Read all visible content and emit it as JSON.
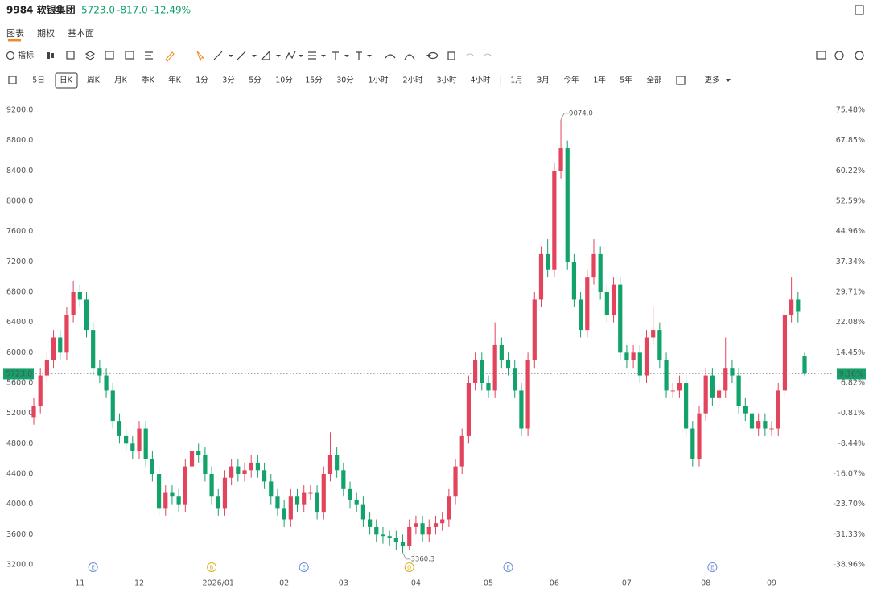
{
  "header": {
    "symbol": "9984 软银集团",
    "price": "5723.0",
    "change": "-817.0",
    "change_pct": "-12.49%"
  },
  "tabs": [
    "图表",
    "期权",
    "基本面"
  ],
  "toolbar": {
    "indicator": "指标"
  },
  "periods": [
    "5日",
    "日K",
    "周K",
    "月K",
    "季K",
    "年K",
    "1分",
    "3分",
    "5分",
    "10分",
    "15分",
    "30分",
    "1小时",
    "2小时",
    "3小时",
    "4小时",
    "1月",
    "3月",
    "今年",
    "1年",
    "5年",
    "全部",
    "更多"
  ],
  "chart_data": {
    "type": "candlestick",
    "up_color": "#e2445c",
    "down_color": "#12a26a",
    "grid": false,
    "categories": [
      null,
      null,
      null,
      null,
      null,
      null,
      null,
      "11",
      null,
      null,
      null,
      null,
      null,
      null,
      null,
      null,
      "12",
      null,
      null,
      null,
      null,
      null,
      null,
      null,
      null,
      null,
      null,
      null,
      "2026/01",
      null,
      null,
      null,
      null,
      null,
      null,
      null,
      null,
      null,
      "02",
      null,
      null,
      null,
      null,
      null,
      null,
      null,
      null,
      "03",
      null,
      null,
      null,
      null,
      null,
      null,
      null,
      null,
      null,
      null,
      "04",
      null,
      null,
      null,
      null,
      null,
      null,
      null,
      null,
      null,
      null,
      "05",
      null,
      null,
      null,
      null,
      null,
      null,
      null,
      null,
      null,
      "06",
      null,
      null,
      null,
      null,
      null,
      null,
      null,
      null,
      null,
      null,
      "07",
      null,
      null,
      null,
      null,
      null,
      null,
      null,
      null,
      null,
      null,
      null,
      "08",
      null,
      null,
      null,
      null,
      null,
      null,
      null,
      null,
      null,
      "09",
      null,
      null,
      null,
      null,
      null
    ],
    "open": [
      5150,
      5300,
      5700,
      5900,
      6200,
      6000,
      6500,
      6800,
      6700,
      6300,
      5800,
      5700,
      5500,
      5100,
      4900,
      4800,
      4700,
      5000,
      4600,
      4400,
      3950,
      4150,
      4100,
      4000,
      4500,
      4700,
      4650,
      4400,
      4100,
      3950,
      4350,
      4500,
      4400,
      4450,
      4550,
      4450,
      4300,
      4100,
      3950,
      3800,
      4100,
      4000,
      4150,
      4150,
      3900,
      4400,
      4650,
      4450,
      4200,
      4050,
      4000,
      3800,
      3700,
      3600,
      3580,
      3550,
      3500,
      3450,
      3700,
      3750,
      3600,
      3700,
      3750,
      3800,
      4100,
      4500,
      4900,
      5600,
      5900,
      5600,
      5500,
      6100,
      5900,
      5800,
      5500,
      5000,
      5900,
      6700,
      7300,
      7100,
      8400,
      8700,
      7200,
      6700,
      6300,
      7000,
      7300,
      6800,
      6500,
      6900,
      6000,
      5900,
      6000,
      5700,
      6200,
      6300,
      5900,
      5500,
      5500,
      5600,
      5000,
      4600,
      5200,
      5700,
      5400,
      5500,
      5800,
      5700,
      5300,
      5200,
      5000,
      5100,
      5000,
      5000,
      5500,
      6500,
      6700,
      5950
    ],
    "high": [
      5400,
      5800,
      6000,
      6300,
      6300,
      6600,
      6950,
      6900,
      6800,
      6400,
      5900,
      5800,
      5600,
      5200,
      5000,
      4900,
      5100,
      5100,
      4700,
      4500,
      4250,
      4250,
      4200,
      4600,
      4800,
      4800,
      4750,
      4500,
      4200,
      4450,
      4600,
      4600,
      4550,
      4650,
      4650,
      4550,
      4400,
      4200,
      4050,
      4200,
      4200,
      4250,
      4250,
      4250,
      4500,
      4950,
      4750,
      4550,
      4300,
      4150,
      4100,
      3900,
      3800,
      3700,
      3650,
      3650,
      3600,
      3800,
      3850,
      3850,
      3800,
      3850,
      3900,
      4200,
      4600,
      5000,
      5700,
      6000,
      6000,
      5700,
      6400,
      6200,
      6000,
      5900,
      5600,
      6000,
      6800,
      7400,
      7500,
      8500,
      9074,
      8800,
      7300,
      6800,
      7100,
      7500,
      7400,
      6900,
      7000,
      7000,
      6100,
      6100,
      6100,
      6300,
      6600,
      6400,
      6000,
      5600,
      5700,
      5700,
      5100,
      5300,
      5800,
      5800,
      5600,
      6200,
      5900,
      5800,
      5400,
      5300,
      5200,
      5200,
      5100,
      5600,
      6600,
      7000,
      6800,
      6000
    ],
    "low": [
      5050,
      5200,
      5600,
      5800,
      5900,
      5900,
      6400,
      6600,
      6200,
      5700,
      5600,
      5400,
      5000,
      4800,
      4700,
      4600,
      4600,
      4500,
      4300,
      3850,
      3850,
      4000,
      3900,
      3900,
      4400,
      4550,
      4300,
      4000,
      3850,
      3850,
      4250,
      4300,
      4300,
      4350,
      4350,
      4200,
      4000,
      3850,
      3700,
      3700,
      3900,
      3900,
      4050,
      3800,
      3800,
      4300,
      4350,
      4100,
      3950,
      3900,
      3700,
      3600,
      3500,
      3480,
      3450,
      3400,
      3360.3,
      3400,
      3600,
      3500,
      3500,
      3600,
      3650,
      3700,
      4000,
      4400,
      4800,
      5500,
      5500,
      5400,
      5400,
      5800,
      5700,
      5400,
      4900,
      4900,
      5800,
      6600,
      7000,
      7000,
      8300,
      7100,
      6600,
      6200,
      6200,
      6900,
      6700,
      6400,
      6400,
      5900,
      5800,
      5800,
      5600,
      5600,
      6100,
      5800,
      5400,
      5400,
      5400,
      4900,
      4500,
      4500,
      5100,
      5300,
      5300,
      5400,
      5600,
      5200,
      5100,
      4900,
      4900,
      4900,
      4900,
      4900,
      5400,
      6400,
      6400,
      5700
    ],
    "close": [
      5300,
      5700,
      5900,
      6200,
      6000,
      6500,
      6800,
      6700,
      6300,
      5800,
      5700,
      5500,
      5100,
      4900,
      4800,
      4700,
      5000,
      4600,
      4400,
      3950,
      4150,
      4100,
      4000,
      4500,
      4700,
      4650,
      4400,
      4100,
      3950,
      4350,
      4500,
      4400,
      4450,
      4550,
      4450,
      4300,
      4100,
      3950,
      3800,
      4100,
      4000,
      4150,
      4150,
      3900,
      4400,
      4650,
      4450,
      4200,
      4050,
      4000,
      3800,
      3700,
      3600,
      3580,
      3550,
      3500,
      3450,
      3700,
      3750,
      3600,
      3700,
      3750,
      3800,
      4100,
      4500,
      4900,
      5600,
      5900,
      5600,
      5500,
      6100,
      5900,
      5800,
      5500,
      5000,
      5900,
      6700,
      7300,
      7100,
      8400,
      8700,
      7200,
      6700,
      6300,
      7000,
      7300,
      6800,
      6500,
      6900,
      6000,
      5900,
      6000,
      5700,
      6200,
      6300,
      5900,
      5500,
      5500,
      5600,
      5000,
      4600,
      5200,
      5700,
      5400,
      5500,
      5800,
      5700,
      5300,
      5200,
      5000,
      5100,
      5000,
      5000,
      5500,
      6500,
      6700,
      6540,
      5723
    ],
    "ylim": [
      3200,
      9200
    ],
    "yticks": [
      {
        "value": 9200,
        "label": "9200.0"
      },
      {
        "value": 8800,
        "label": "8800.0"
      },
      {
        "value": 8400,
        "label": "8400.0"
      },
      {
        "value": 8000,
        "label": "8000.0"
      },
      {
        "value": 7600,
        "label": "7600.0"
      },
      {
        "value": 7200,
        "label": "7200.0"
      },
      {
        "value": 6800,
        "label": "6800.0"
      },
      {
        "value": 6400,
        "label": "6400.0"
      },
      {
        "value": 6000,
        "label": "6000.0"
      },
      {
        "value": 5600,
        "label": "5600.0"
      },
      {
        "value": 5200,
        "label": "5200.0"
      },
      {
        "value": 4800,
        "label": "4800.0"
      },
      {
        "value": 4400,
        "label": "4400.0"
      },
      {
        "value": 4000,
        "label": "4000.0"
      },
      {
        "value": 3600,
        "label": "3600.0"
      },
      {
        "value": 3200,
        "label": "3200.0"
      }
    ],
    "y2lim": [
      -38.96,
      75.48
    ],
    "y2ticks": [
      {
        "value": 75.48,
        "label": "75.48%"
      },
      {
        "value": 67.85,
        "label": "67.85%"
      },
      {
        "value": 60.22,
        "label": "60.22%"
      },
      {
        "value": 52.59,
        "label": "52.59%"
      },
      {
        "value": 44.96,
        "label": "44.96%"
      },
      {
        "value": 37.34,
        "label": "37.34%"
      },
      {
        "value": 29.71,
        "label": "29.71%"
      },
      {
        "value": 22.08,
        "label": "22.08%"
      },
      {
        "value": 14.45,
        "label": "14.45%"
      },
      {
        "value": 6.82,
        "label": "6.82%"
      },
      {
        "value": -0.81,
        "label": "-0.81%"
      },
      {
        "value": -8.44,
        "label": "-8.44%"
      },
      {
        "value": -16.07,
        "label": "-16.07%"
      },
      {
        "value": -23.7,
        "label": "-23.70%"
      },
      {
        "value": -31.33,
        "label": "-31.33%"
      },
      {
        "value": -38.96,
        "label": "-38.96%"
      }
    ],
    "last_price": {
      "value": 5723,
      "label": "5723.0"
    },
    "last_change_pct": {
      "value": 9.16,
      "label": "9.16%"
    },
    "annotations": [
      {
        "text": "9074.0",
        "index": 80,
        "value": 9074
      },
      {
        "text": "3360.3",
        "index": 56,
        "value": 3360.3
      }
    ],
    "events": [
      {
        "label": "E",
        "index": 9,
        "color": "#6b8fd6"
      },
      {
        "label": "B",
        "index": 27,
        "color": "#d9b020"
      },
      {
        "label": "E",
        "index": 41,
        "color": "#6b8fd6"
      },
      {
        "label": "D",
        "index": 57,
        "color": "#d9b020"
      },
      {
        "label": "E",
        "index": 72,
        "color": "#6b8fd6"
      },
      {
        "label": "E",
        "index": 103,
        "color": "#6b8fd6"
      }
    ]
  }
}
